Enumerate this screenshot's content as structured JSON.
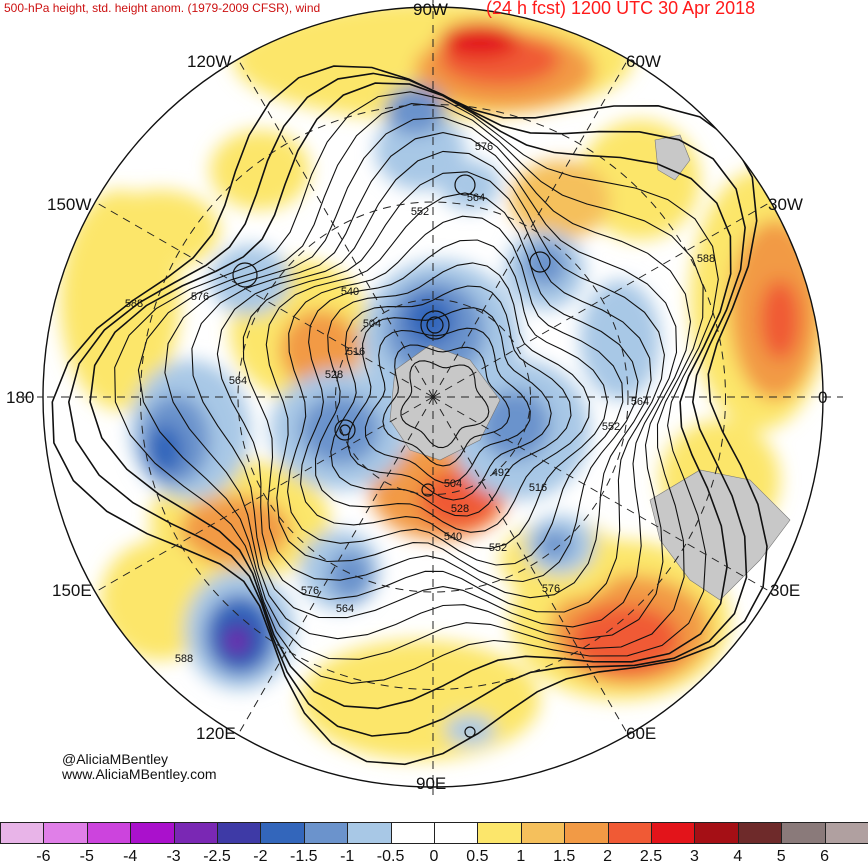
{
  "header": {
    "left": "500-hPa height, std. height anom. (1979-2009 CFSR), wind",
    "right": "(24 h fcst) 1200 UTC 30 Apr 2018"
  },
  "lon_labels": {
    "n": "90W",
    "nw": "120W",
    "ne": "60W",
    "wnw": "150W",
    "ene": "30W",
    "w": "180",
    "e": "0",
    "wsw": "150E",
    "ese": "30E",
    "sw": "120E",
    "se": "60E",
    "s": "90E"
  },
  "contour_labels": [
    "576",
    "564",
    "552",
    "588",
    "576",
    "540",
    "504",
    "516",
    "528",
    "564",
    "588",
    "564",
    "552",
    "492",
    "504",
    "516",
    "528",
    "540",
    "552",
    "576",
    "576",
    "564",
    "588"
  ],
  "credit": {
    "line1": "@AliciaMBentley",
    "line2": "www.AliciaMBentley.com"
  },
  "colorbar": {
    "ticks": [
      "-6",
      "-5",
      "-4",
      "-3",
      "-2.5",
      "-2",
      "-1.5",
      "-1",
      "-0.5",
      "0",
      "0.5",
      "1",
      "1.5",
      "2",
      "2.5",
      "3",
      "4",
      "5",
      "6"
    ],
    "colors": [
      "#e8b4e8",
      "#e07fe8",
      "#cc44dd",
      "#aa11cc",
      "#7a28b4",
      "#3e3aa6",
      "#3366bb",
      "#6b93cc",
      "#a8c8e6",
      "#ffffff",
      "#ffffff",
      "#fce66b",
      "#f5c05c",
      "#f29a45",
      "#f05a35",
      "#e3141a",
      "#a50f15",
      "#6e2a2a",
      "#8a7a7a",
      "#b0a0a0"
    ]
  },
  "colors": {
    "land": "#c8c8c8",
    "contour": "#111111",
    "header": "#ff1a1a"
  }
}
